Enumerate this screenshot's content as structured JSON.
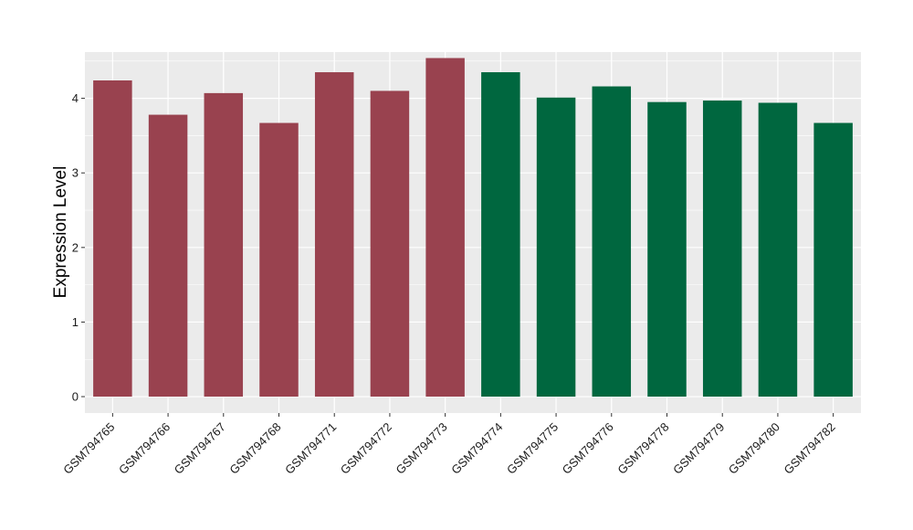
{
  "chart_data": {
    "type": "bar",
    "title": "",
    "xlabel": "",
    "ylabel": "Expression Level",
    "ylim": [
      -0.22,
      4.62
    ],
    "yticks": [
      0,
      1,
      2,
      3,
      4
    ],
    "grid": true,
    "categories": [
      "GSM794765",
      "GSM794766",
      "GSM794767",
      "GSM794768",
      "GSM794771",
      "GSM794772",
      "GSM794773",
      "GSM794774",
      "GSM794775",
      "GSM794776",
      "GSM794778",
      "GSM794779",
      "GSM794780",
      "GSM794782"
    ],
    "values": [
      4.24,
      3.78,
      4.07,
      3.67,
      4.35,
      4.1,
      4.54,
      4.35,
      4.01,
      4.16,
      3.95,
      3.97,
      3.94,
      3.67
    ],
    "groups": [
      0,
      0,
      0,
      0,
      0,
      0,
      0,
      1,
      1,
      1,
      1,
      1,
      1,
      1
    ],
    "group_colors": [
      "#99424f",
      "#00673f"
    ],
    "panel_color": "#ebebeb",
    "grid_color": "#ffffff"
  }
}
